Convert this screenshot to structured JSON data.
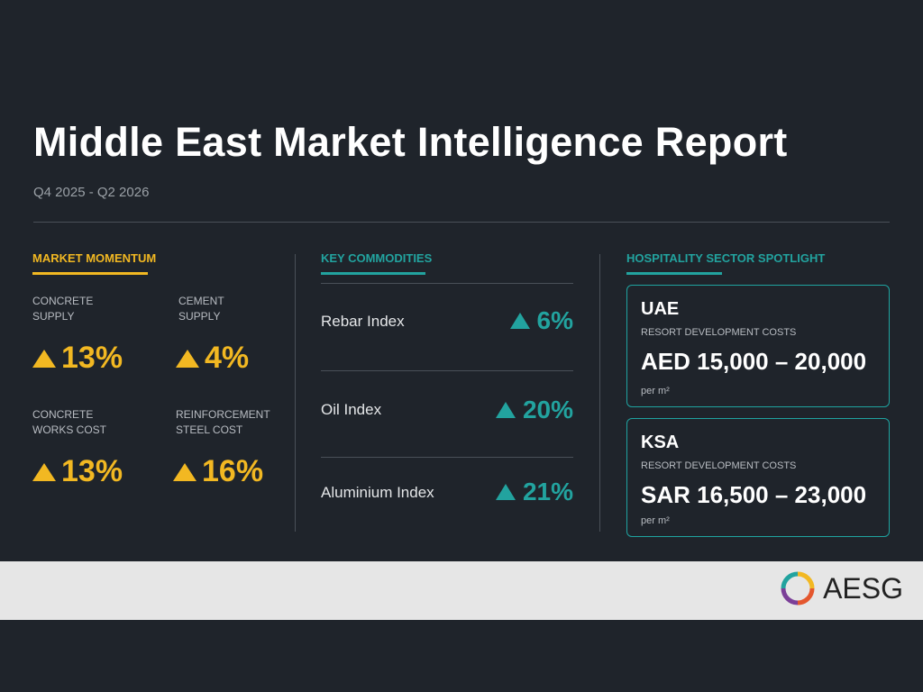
{
  "header": {
    "title": "Middle East Market Intelligence Report",
    "subtitle": "Q4 2025 - Q2 2026"
  },
  "momentum": {
    "title": "MARKET MOMENTUM",
    "items": [
      {
        "label": "CONCRETE SUPPLY",
        "value": "13%"
      },
      {
        "label": "CEMENT SUPPLY",
        "value": "4%"
      },
      {
        "label": "CONCRETE WORKS COST",
        "value": "13%"
      },
      {
        "label": "REINFORCEMENT STEEL COST",
        "value": "16%"
      }
    ]
  },
  "commodities": {
    "title": "KEY COMMODITIES",
    "items": [
      {
        "label": "Rebar Index",
        "value": "6%"
      },
      {
        "label": "Oil Index",
        "value": "20%"
      },
      {
        "label": "Aluminium Index",
        "value": "21%"
      }
    ]
  },
  "hospitality": {
    "title": "HOSPITALITY SECTOR SPOTLIGHT",
    "cards": [
      {
        "region": "UAE",
        "label": "RESORT DEVELOPMENT COSTS",
        "value": "AED 15,000 – 20,000",
        "unit": "per m²"
      },
      {
        "region": "KSA",
        "label": "RESORT DEVELOPMENT COSTS",
        "value": "SAR 16,500 – 23,000",
        "unit": "per m²"
      }
    ]
  },
  "footer": {
    "logo": "AESG"
  }
}
